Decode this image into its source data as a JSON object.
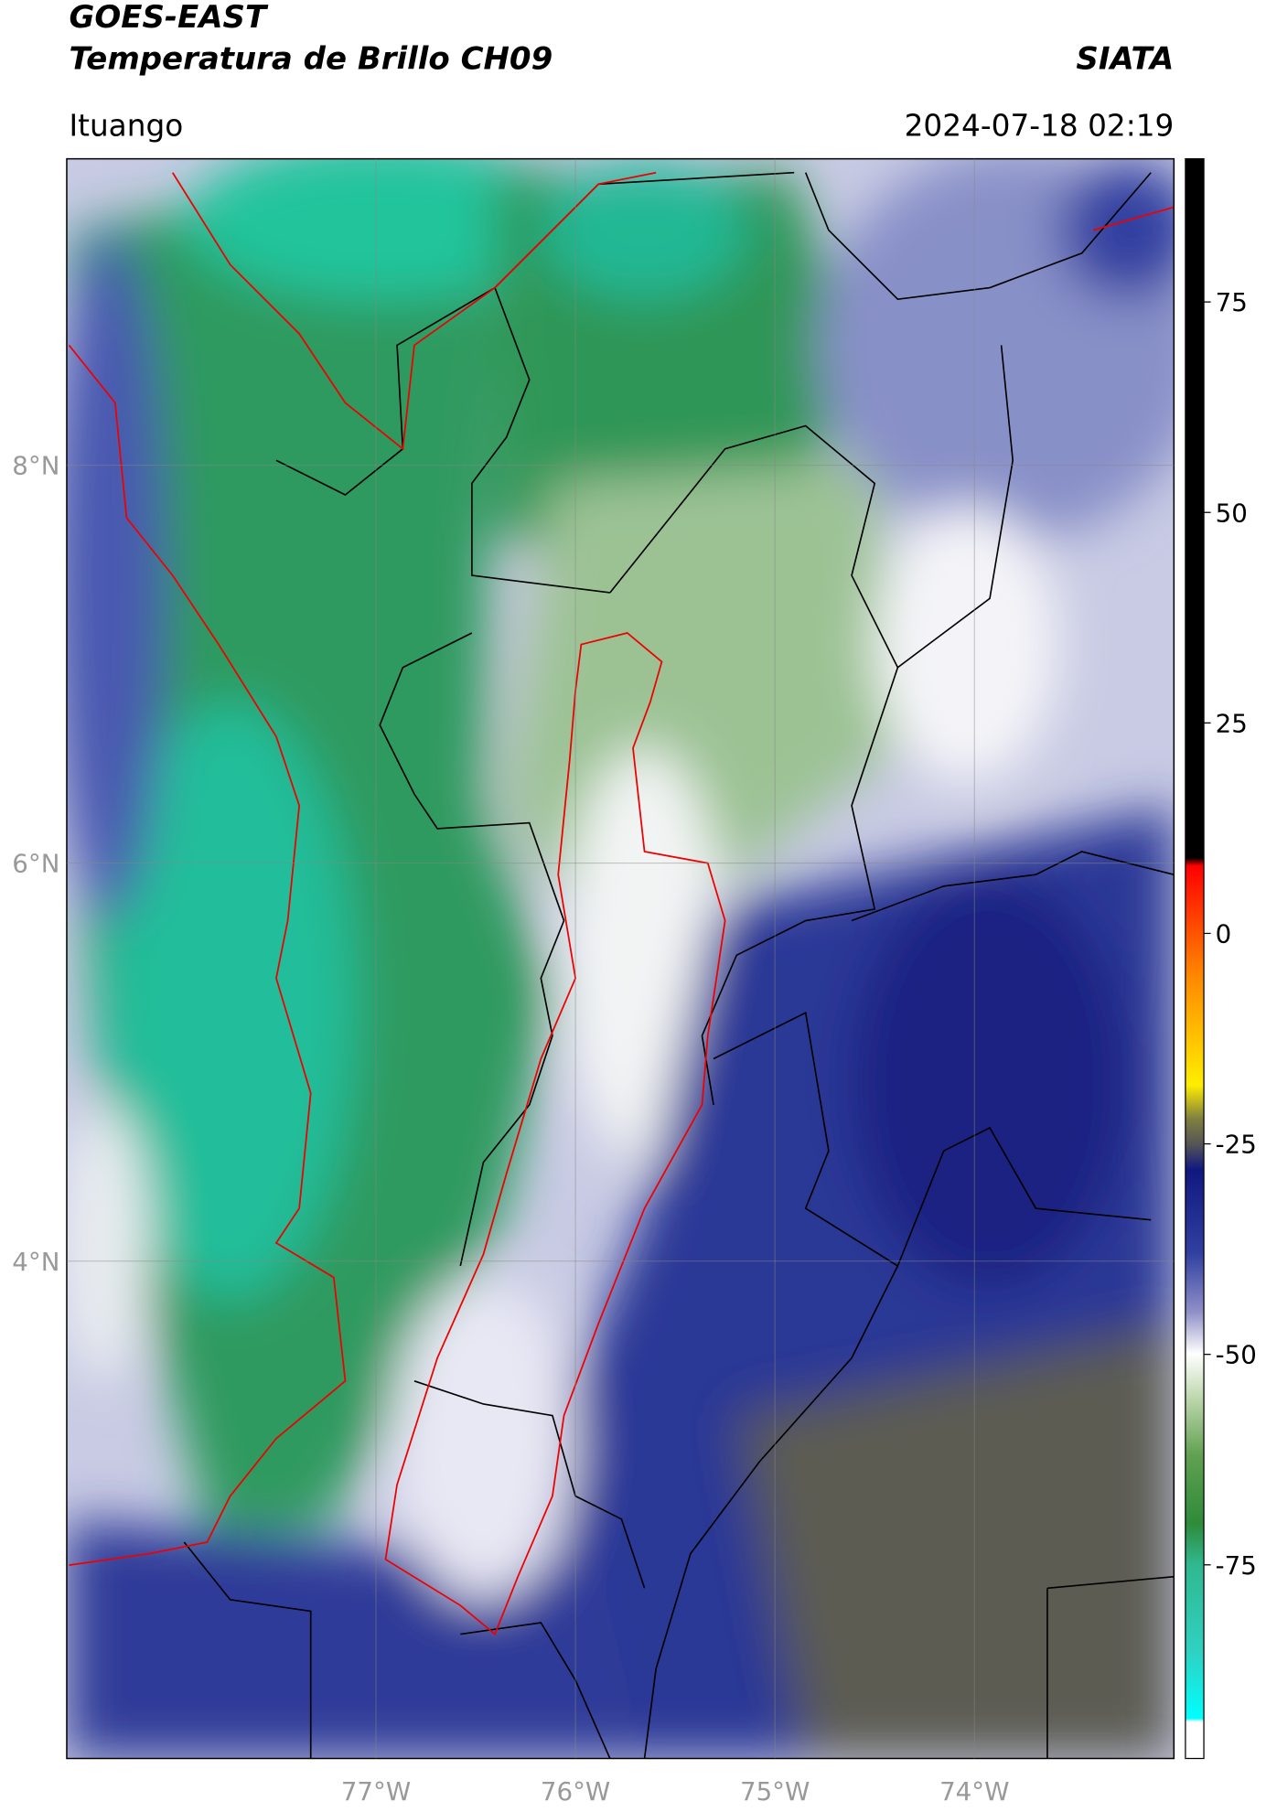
{
  "header": {
    "title": "GOES-EAST",
    "subtitle": "Temperatura de Brillo CH09",
    "source": "SIATA",
    "region": "Ituango",
    "timestamp": "2024-07-18 02:19"
  },
  "map": {
    "xlim": [
      -78.55,
      -73.0
    ],
    "ylim": [
      1.5,
      9.54
    ],
    "xticks": [
      {
        "value": -77,
        "label": "77°W"
      },
      {
        "value": -76,
        "label": "76°W"
      },
      {
        "value": -75,
        "label": "75°W"
      },
      {
        "value": -74,
        "label": "74°W"
      }
    ],
    "yticks": [
      {
        "value": 4,
        "label": "4°N"
      },
      {
        "value": 6,
        "label": "6°N"
      },
      {
        "value": 8,
        "label": "8°N"
      }
    ],
    "grid": true
  },
  "colorbar": {
    "lim": [
      -98,
      92
    ],
    "ticks": [
      75,
      50,
      25,
      0,
      -25,
      -50,
      -75
    ]
  }
}
